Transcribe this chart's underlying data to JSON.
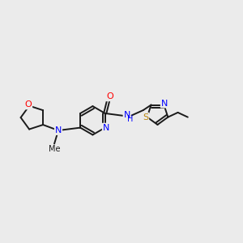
{
  "background_color": "#ebebeb",
  "bond_color": "#1a1a1a",
  "atom_colors": {
    "N": "#0000ff",
    "O": "#ff0000",
    "S": "#b8860b",
    "C": "#1a1a1a"
  },
  "figsize": [
    3.0,
    3.0
  ],
  "dpi": 100,
  "xlim": [
    0,
    12
  ],
  "ylim": [
    2,
    9
  ]
}
